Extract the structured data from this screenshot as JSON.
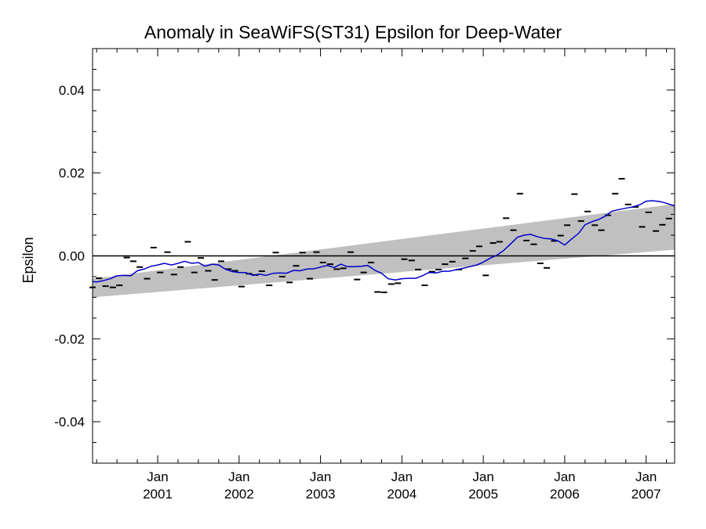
{
  "chart_data": {
    "type": "line",
    "title": "Anomaly in SeaWiFS(ST31) Epsilon for Deep-Water",
    "xlabel": "",
    "ylabel": "Epsilon",
    "xlim": [
      2000.2,
      2007.35
    ],
    "ylim": [
      -0.05,
      0.05
    ],
    "yticks": [
      -0.04,
      -0.02,
      0.0,
      0.02,
      0.04
    ],
    "ytick_labels": [
      "-0.04",
      "-0.02",
      "0.00",
      "0.02",
      "0.04"
    ],
    "xticks": [
      {
        "x": 2001,
        "label": "Jan",
        "year": "2001"
      },
      {
        "x": 2002,
        "label": "Jan",
        "year": "2002"
      },
      {
        "x": 2003,
        "label": "Jan",
        "year": "2003"
      },
      {
        "x": 2004,
        "label": "Jan",
        "year": "2004"
      },
      {
        "x": 2005,
        "label": "Jan",
        "year": "2005"
      },
      {
        "x": 2006,
        "label": "Jan",
        "year": "2006"
      },
      {
        "x": 2007,
        "label": "Jan",
        "year": "2007"
      }
    ],
    "zero_line": 0.0,
    "band": {
      "color": "#c0c0c0",
      "x": [
        2000.2,
        2007.35
      ],
      "upper": [
        -0.0055,
        0.0125
      ],
      "lower": [
        -0.01,
        0.0015
      ]
    },
    "series": [
      {
        "style": "line",
        "color": "#0000cc",
        "x": [
          2000.2,
          2000.25,
          2000.33,
          2000.42,
          2000.5,
          2000.58,
          2000.67,
          2000.75,
          2000.83,
          2000.92,
          2001.0,
          2001.08,
          2001.17,
          2001.25,
          2001.33,
          2001.42,
          2001.5,
          2001.58,
          2001.67,
          2001.75,
          2001.83,
          2001.92,
          2002.0,
          2002.08,
          2002.17,
          2002.25,
          2002.33,
          2002.42,
          2002.5,
          2002.58,
          2002.67,
          2002.75,
          2002.83,
          2002.92,
          2003.0,
          2003.08,
          2003.17,
          2003.25,
          2003.33,
          2003.42,
          2003.5,
          2003.58,
          2003.67,
          2003.75,
          2003.83,
          2003.92,
          2004.0,
          2004.08,
          2004.17,
          2004.25,
          2004.33,
          2004.42,
          2004.5,
          2004.58,
          2004.67,
          2004.75,
          2004.83,
          2004.92,
          2005.0,
          2005.08,
          2005.17,
          2005.25,
          2005.33,
          2005.42,
          2005.5,
          2005.58,
          2005.67,
          2005.75,
          2005.83,
          2005.92,
          2006.0,
          2006.08,
          2006.17,
          2006.25,
          2006.33,
          2006.42,
          2006.5,
          2006.58,
          2006.67,
          2006.75,
          2006.83,
          2006.92,
          2007.0,
          2007.08,
          2007.17,
          2007.25,
          2007.35
        ],
        "y": [
          -0.0062,
          -0.0063,
          -0.006,
          -0.0055,
          -0.0048,
          -0.0047,
          -0.0048,
          -0.0036,
          -0.0032,
          -0.0025,
          -0.0022,
          -0.0018,
          -0.0022,
          -0.0018,
          -0.0013,
          -0.0018,
          -0.0016,
          -0.0025,
          -0.002,
          -0.0022,
          -0.0032,
          -0.0038,
          -0.004,
          -0.004,
          -0.0047,
          -0.0044,
          -0.0047,
          -0.0042,
          -0.0041,
          -0.0042,
          -0.0035,
          -0.0036,
          -0.0032,
          -0.0031,
          -0.0027,
          -0.0023,
          -0.0028,
          -0.002,
          -0.0026,
          -0.0026,
          -0.0025,
          -0.0023,
          -0.0035,
          -0.0042,
          -0.0055,
          -0.0058,
          -0.0055,
          -0.0054,
          -0.0054,
          -0.0048,
          -0.004,
          -0.0041,
          -0.0037,
          -0.0037,
          -0.0033,
          -0.003,
          -0.0026,
          -0.0022,
          -0.0015,
          -0.0006,
          0.0002,
          0.0013,
          0.0028,
          0.0045,
          0.005,
          0.0052,
          0.0046,
          0.0042,
          0.0041,
          0.0036,
          0.0026,
          0.004,
          0.0054,
          0.0075,
          0.0082,
          0.0088,
          0.0096,
          0.0108,
          0.0112,
          0.0115,
          0.0118,
          0.0123,
          0.0132,
          0.0133,
          0.0131,
          0.0127,
          0.012
        ]
      },
      {
        "style": "dash",
        "color": "#000000",
        "x": [
          2000.2,
          2000.28,
          2000.36,
          2000.45,
          2000.53,
          2000.62,
          2000.7,
          2000.78,
          2000.87,
          2000.95,
          2001.03,
          2001.12,
          2001.2,
          2001.28,
          2001.37,
          2001.45,
          2001.53,
          2001.62,
          2001.7,
          2001.78,
          2001.87,
          2001.95,
          2002.03,
          2002.12,
          2002.2,
          2002.28,
          2002.37,
          2002.45,
          2002.53,
          2002.62,
          2002.7,
          2002.78,
          2002.87,
          2002.95,
          2003.03,
          2003.12,
          2003.2,
          2003.28,
          2003.37,
          2003.45,
          2003.53,
          2003.62,
          2003.7,
          2003.78,
          2003.87,
          2003.95,
          2004.03,
          2004.12,
          2004.2,
          2004.28,
          2004.37,
          2004.45,
          2004.53,
          2004.62,
          2004.7,
          2004.78,
          2004.87,
          2004.95,
          2005.03,
          2005.12,
          2005.2,
          2005.28,
          2005.37,
          2005.45,
          2005.53,
          2005.62,
          2005.7,
          2005.78,
          2005.87,
          2005.95,
          2006.03,
          2006.12,
          2006.2,
          2006.28,
          2006.37,
          2006.45,
          2006.53,
          2006.62,
          2006.7,
          2006.78,
          2006.87,
          2006.95,
          2007.03,
          2007.12,
          2007.2,
          2007.28
        ],
        "y": [
          -0.0076,
          -0.0054,
          -0.0073,
          -0.0076,
          -0.0071,
          -0.0004,
          -0.0013,
          -0.0027,
          -0.0055,
          0.002,
          -0.004,
          0.0009,
          -0.0045,
          -0.0027,
          0.0034,
          -0.004,
          -0.0005,
          -0.0036,
          -0.0058,
          -0.0013,
          -0.0032,
          -0.0036,
          -0.0074,
          -0.0043,
          -0.0046,
          -0.0037,
          -0.0071,
          0.0008,
          -0.005,
          -0.0064,
          -0.0024,
          0.0008,
          -0.0055,
          0.0009,
          -0.0016,
          -0.002,
          -0.0032,
          -0.003,
          0.0009,
          -0.0057,
          -0.004,
          -0.0016,
          -0.0087,
          -0.0088,
          -0.0068,
          -0.0066,
          -0.0008,
          -0.0011,
          -0.0033,
          -0.0071,
          -0.0038,
          -0.0033,
          -0.002,
          -0.0014,
          -0.0033,
          -0.0006,
          0.0012,
          0.0023,
          -0.0047,
          0.0031,
          0.0034,
          0.0091,
          0.0062,
          0.015,
          0.0037,
          0.0028,
          -0.0018,
          -0.0029,
          0.0036,
          0.0049,
          0.0074,
          0.0149,
          0.0084,
          0.0107,
          0.0074,
          0.0062,
          0.0098,
          0.015,
          0.0186,
          0.0124,
          0.0118,
          0.007,
          0.0105,
          0.006,
          0.0075,
          0.009
        ]
      }
    ]
  }
}
